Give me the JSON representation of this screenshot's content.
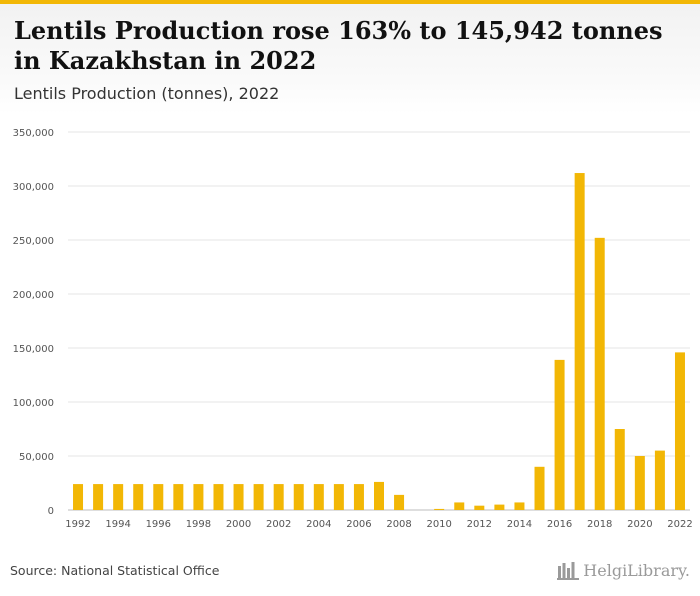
{
  "header": {
    "title": "Lentils Production rose 163% to 145,942 tonnes in Kazakhstan in 2022",
    "subtitle": "Lentils Production (tonnes), 2022"
  },
  "footer": {
    "source": "Source: National Statistical Office",
    "brand": "HelgiLibrary."
  },
  "colors": {
    "bar": "#f2b705",
    "grid": "#e6e6e6",
    "axis": "#bdbdbd",
    "accent": "#f2b705"
  },
  "chart_data": {
    "type": "bar",
    "categories": [
      "1992",
      "1993",
      "1994",
      "1995",
      "1996",
      "1997",
      "1998",
      "1999",
      "2000",
      "2001",
      "2002",
      "2003",
      "2004",
      "2005",
      "2006",
      "2007",
      "2008",
      "2009",
      "2010",
      "2011",
      "2012",
      "2013",
      "2014",
      "2015",
      "2016",
      "2017",
      "2018",
      "2019",
      "2020",
      "2021",
      "2022"
    ],
    "values": [
      24000,
      24000,
      24000,
      24000,
      24000,
      24000,
      24000,
      24000,
      24000,
      24000,
      24000,
      24000,
      24000,
      24000,
      24000,
      26000,
      14000,
      0,
      1000,
      7000,
      4000,
      5000,
      7000,
      40000,
      139000,
      312000,
      252000,
      75000,
      50000,
      55000,
      145942
    ],
    "x_tick_labels": [
      "1992",
      "1994",
      "1996",
      "1998",
      "2000",
      "2002",
      "2004",
      "2006",
      "2008",
      "2010",
      "2012",
      "2014",
      "2016",
      "2018",
      "2020",
      "2022"
    ],
    "y_tick_labels": [
      "0",
      "50,000",
      "100,000",
      "150,000",
      "200,000",
      "250,000",
      "300,000",
      "350,000"
    ],
    "y_ticks": [
      0,
      50000,
      100000,
      150000,
      200000,
      250000,
      300000,
      350000
    ],
    "ylim": [
      0,
      350000
    ],
    "grid": true,
    "legend": "none"
  }
}
